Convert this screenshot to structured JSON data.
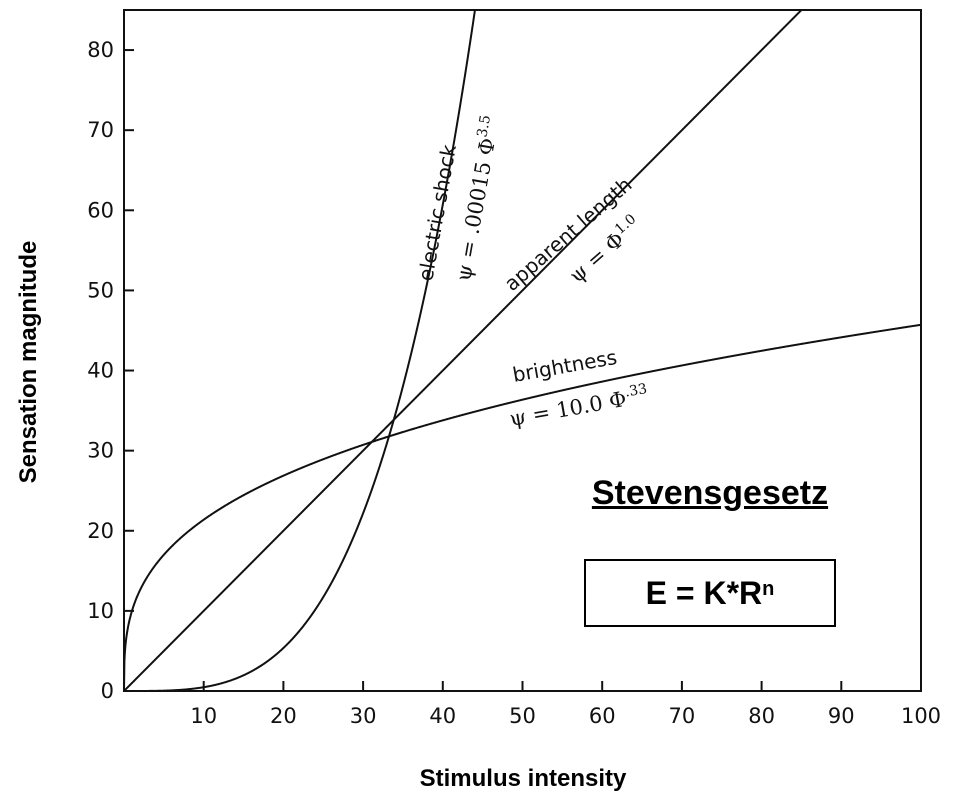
{
  "chart_data": {
    "type": "line",
    "title": "",
    "xlabel": "Stimulus intensity",
    "ylabel": "Sensation magnitude",
    "xlim": [
      0,
      100
    ],
    "ylim": [
      0,
      85
    ],
    "x_ticks": [
      0,
      10,
      20,
      30,
      40,
      50,
      60,
      70,
      80,
      90,
      100
    ],
    "y_ticks": [
      0,
      10,
      20,
      30,
      40,
      50,
      60,
      70,
      80
    ],
    "x_tick_labels": [
      "10",
      "20",
      "30",
      "40",
      "50",
      "60",
      "70",
      "80",
      "90",
      "100"
    ],
    "y_tick_labels": [
      "0",
      "10",
      "20",
      "30",
      "40",
      "50",
      "60",
      "70",
      "80"
    ],
    "grid": false,
    "series": [
      {
        "label": "electric shock",
        "equation_prefix": "ψ = .00015 Φ",
        "exponent_label": "3.5",
        "coefficient": 0.00015,
        "exponent": 3.5
      },
      {
        "label": "apparent length",
        "equation_prefix": "ψ = Φ",
        "exponent_label": "1.0",
        "coefficient": 1.0,
        "exponent": 1.0
      },
      {
        "label": "brightness",
        "equation_prefix": "ψ = 10.0 Φ",
        "exponent_label": ".33",
        "coefficient": 10.0,
        "exponent": 0.33
      }
    ]
  },
  "overlay": {
    "law_title": "Stevensgesetz",
    "formula_base": "E = K*R",
    "formula_exponent": "n"
  }
}
